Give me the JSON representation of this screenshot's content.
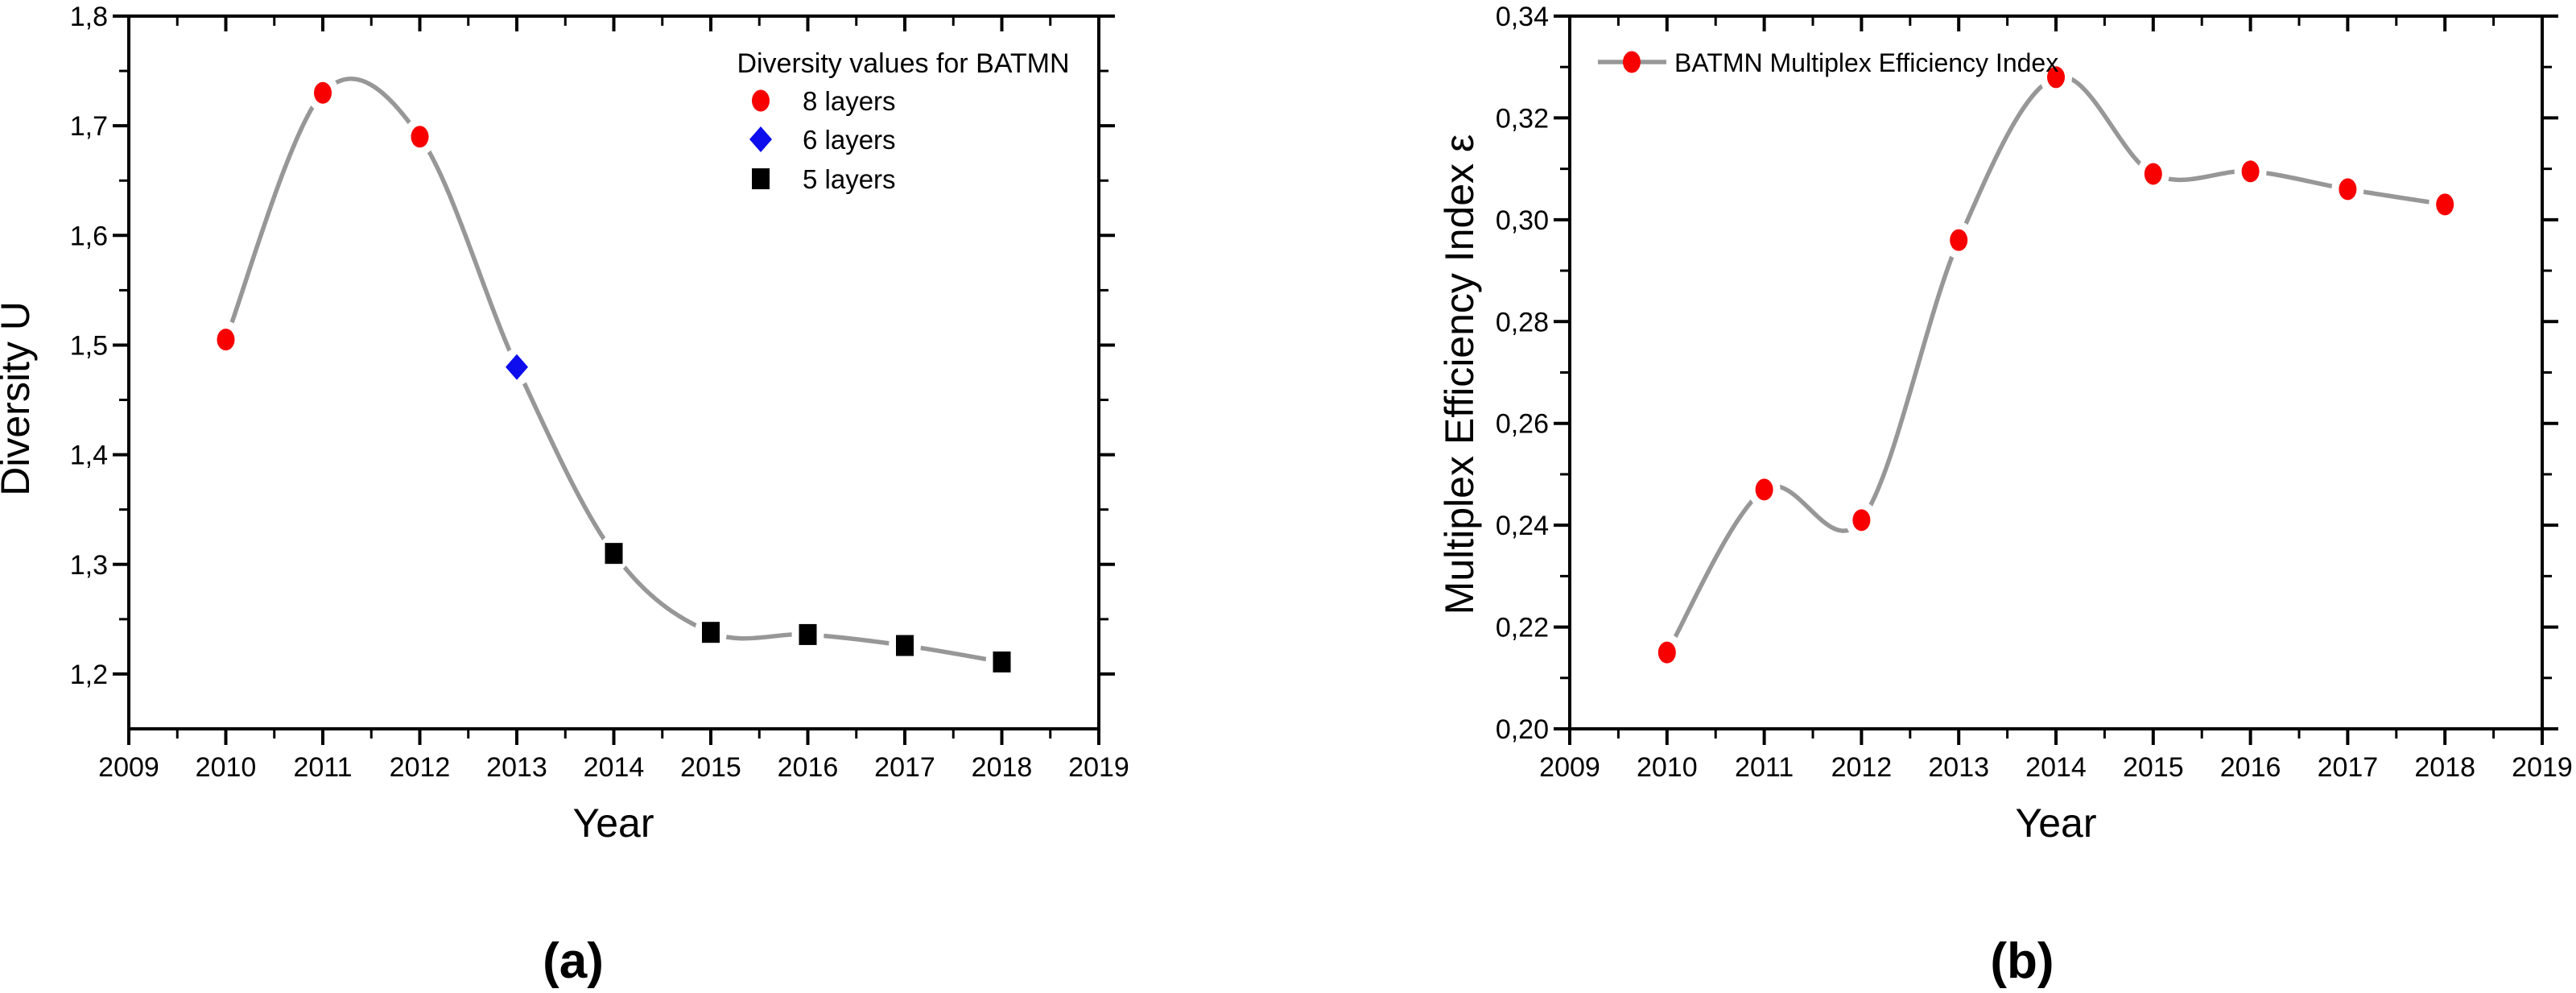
{
  "figure": {
    "background": "#ffffff",
    "accent_red": "#f80000",
    "accent_blue": "#0d0dee",
    "accent_black": "#000000",
    "curve_gray": "#979797"
  },
  "chart_data": [
    {
      "type": "line",
      "panel_label": "(a)",
      "title": "",
      "xlabel": "Year",
      "ylabel": "Diversity U",
      "xlim": [
        2009,
        2019
      ],
      "ylim": [
        1.15,
        1.8
      ],
      "x_major_ticks": [
        2009,
        2010,
        2011,
        2012,
        2013,
        2014,
        2015,
        2016,
        2017,
        2018,
        2019
      ],
      "x_minor_tick_step": 0.5,
      "y_major_ticks": [
        1.2,
        1.3,
        1.4,
        1.5,
        1.6,
        1.7,
        1.8
      ],
      "y_tick_labels": [
        "1,2",
        "1,3",
        "1,4",
        "1,5",
        "1,6",
        "1,7",
        "1,8"
      ],
      "y_minor_ticks": [
        1.25,
        1.35,
        1.45,
        1.55,
        1.65,
        1.75
      ],
      "grid": false,
      "decimal_separator": ",",
      "line_color": "#979797",
      "legend": {
        "position": "top-right-inside",
        "title": "Diversity values for BATMN",
        "items": [
          {
            "label": "8 layers",
            "marker": "circle",
            "color": "#f80000"
          },
          {
            "label": "6 layers",
            "marker": "diamond",
            "color": "#0d0dee"
          },
          {
            "label": "5 layers",
            "marker": "square",
            "color": "#000000"
          }
        ]
      },
      "series": [
        {
          "name": "8 layers",
          "marker": "circle",
          "color": "#f80000",
          "points": [
            {
              "x": 2010,
              "y": 1.505
            },
            {
              "x": 2011,
              "y": 1.73
            },
            {
              "x": 2012,
              "y": 1.69
            }
          ]
        },
        {
          "name": "6 layers",
          "marker": "diamond",
          "color": "#0d0dee",
          "points": [
            {
              "x": 2013,
              "y": 1.48
            }
          ]
        },
        {
          "name": "5 layers",
          "marker": "square",
          "color": "#000000",
          "points": [
            {
              "x": 2014,
              "y": 1.31
            },
            {
              "x": 2015,
              "y": 1.238
            },
            {
              "x": 2016,
              "y": 1.236
            },
            {
              "x": 2017,
              "y": 1.226
            },
            {
              "x": 2018,
              "y": 1.211
            }
          ]
        }
      ]
    },
    {
      "type": "line",
      "panel_label": "(b)",
      "title": "",
      "xlabel": "Year",
      "ylabel": "Multiplex Efficiency Index ε",
      "xlim": [
        2009,
        2019
      ],
      "ylim": [
        0.2,
        0.34
      ],
      "x_major_ticks": [
        2009,
        2010,
        2011,
        2012,
        2013,
        2014,
        2015,
        2016,
        2017,
        2018,
        2019
      ],
      "x_minor_tick_step": 0.5,
      "y_major_ticks": [
        0.2,
        0.22,
        0.24,
        0.26,
        0.28,
        0.3,
        0.32,
        0.34
      ],
      "y_tick_labels": [
        "0,20",
        "0,22",
        "0,24",
        "0,26",
        "0,28",
        "0,30",
        "0,32",
        "0,34"
      ],
      "y_minor_ticks": [
        0.21,
        0.23,
        0.25,
        0.27,
        0.29,
        0.31,
        0.33
      ],
      "grid": false,
      "decimal_separator": ",",
      "line_color": "#979797",
      "legend": {
        "position": "top-left-inside",
        "title": "",
        "items": [
          {
            "label": "BATMN Multiplex Efficiency Index",
            "marker": "circle",
            "color": "#f80000",
            "line_through_marker": true
          }
        ]
      },
      "series": [
        {
          "name": "BATMN Multiplex Efficiency Index",
          "marker": "circle",
          "color": "#f80000",
          "points": [
            {
              "x": 2010,
              "y": 0.215
            },
            {
              "x": 2011,
              "y": 0.247
            },
            {
              "x": 2012,
              "y": 0.241
            },
            {
              "x": 2013,
              "y": 0.296
            },
            {
              "x": 2014,
              "y": 0.328
            },
            {
              "x": 2015,
              "y": 0.309
            },
            {
              "x": 2016,
              "y": 0.3095
            },
            {
              "x": 2017,
              "y": 0.306
            },
            {
              "x": 2018,
              "y": 0.303
            }
          ]
        }
      ]
    }
  ]
}
